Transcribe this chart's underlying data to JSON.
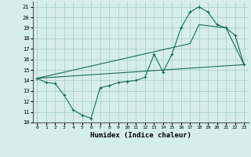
{
  "xlabel": "Humidex (Indice chaleur)",
  "ylabel": "",
  "bg_color": "#d6eee8",
  "grid_color": "#a0ccc4",
  "line_color": "#1a6b5a",
  "xlim": [
    -0.5,
    23.5
  ],
  "ylim": [
    10,
    21.5
  ],
  "xticks": [
    0,
    1,
    2,
    3,
    4,
    5,
    6,
    7,
    8,
    9,
    10,
    11,
    12,
    13,
    14,
    15,
    16,
    17,
    18,
    19,
    20,
    21,
    22,
    23
  ],
  "yticks": [
    10,
    11,
    12,
    13,
    14,
    15,
    16,
    17,
    18,
    19,
    20,
    21
  ],
  "line1_x": [
    0,
    1,
    2,
    3,
    4,
    5,
    6,
    7,
    8,
    9,
    10,
    11,
    12,
    13,
    14,
    15,
    16,
    17,
    18,
    19,
    20,
    21,
    22,
    23
  ],
  "line1_y": [
    14.2,
    13.8,
    13.7,
    12.6,
    11.2,
    10.7,
    10.4,
    13.3,
    13.5,
    13.8,
    13.9,
    14.0,
    14.3,
    16.5,
    14.8,
    16.5,
    19.0,
    20.5,
    21.0,
    20.5,
    19.3,
    19.0,
    18.3,
    15.5
  ],
  "line2_x": [
    0,
    23
  ],
  "line2_y": [
    14.2,
    15.5
  ],
  "line3_x": [
    0,
    17,
    18,
    21,
    23
  ],
  "line3_y": [
    14.2,
    17.5,
    19.3,
    19.0,
    15.5
  ]
}
